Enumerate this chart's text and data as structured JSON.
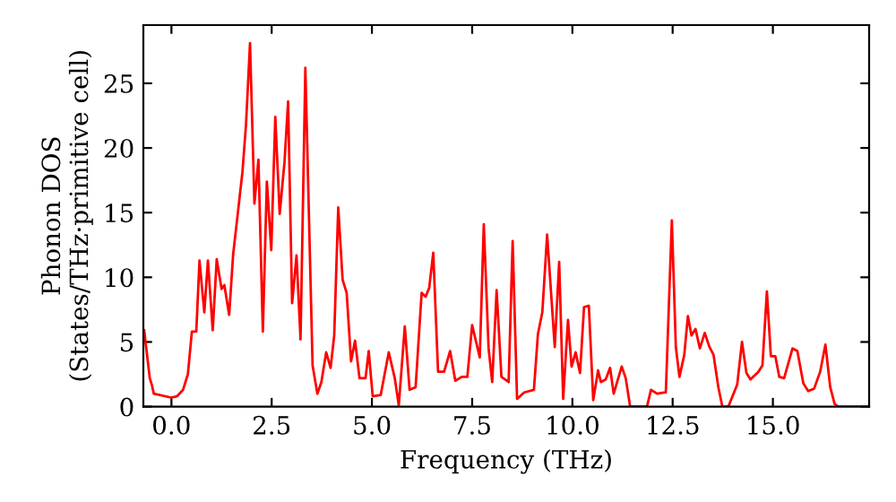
{
  "chart_data": {
    "type": "line",
    "xlabel": "Frequency (THz)",
    "ylabel": "Phonon DOS\n(States/THz·primitive cell)",
    "xlim": [
      -0.7,
      17.4
    ],
    "ylim": [
      0,
      29.5
    ],
    "xticks": [
      {
        "value": 0,
        "label": "0.0"
      },
      {
        "value": 2.5,
        "label": "2.5"
      },
      {
        "value": 5,
        "label": "5.0"
      },
      {
        "value": 7.5,
        "label": "7.5"
      },
      {
        "value": 10,
        "label": "10.0"
      },
      {
        "value": 12.5,
        "label": "12.5"
      },
      {
        "value": 15,
        "label": "15.0"
      }
    ],
    "yticks": [
      0,
      5,
      10,
      15,
      20,
      25
    ],
    "grid": false,
    "marker": "none",
    "line_style": "solid",
    "series": [
      {
        "color": "#ff0000",
        "x": [
          -0.68,
          -0.54,
          -0.49,
          -0.44,
          -0.01,
          0.14,
          0.29,
          0.41,
          0.51,
          0.62,
          0.7,
          0.82,
          0.91,
          1.03,
          1.13,
          1.25,
          1.32,
          1.44,
          1.54,
          1.65,
          1.77,
          1.86,
          1.96,
          2.07,
          2.17,
          2.28,
          2.38,
          2.49,
          2.59,
          2.7,
          2.82,
          2.91,
          3.01,
          3.12,
          3.22,
          3.34,
          3.42,
          3.52,
          3.64,
          3.74,
          3.86,
          3.97,
          4.06,
          4.16,
          4.27,
          4.37,
          4.48,
          4.58,
          4.69,
          4.84,
          4.92,
          5.02,
          5.22,
          5.42,
          5.57,
          5.67,
          5.82,
          5.94,
          6.09,
          6.24,
          6.34,
          6.43,
          6.53,
          6.65,
          6.8,
          6.95,
          7.08,
          7.24,
          7.38,
          7.5,
          7.69,
          7.79,
          7.91,
          8.0,
          8.11,
          8.23,
          8.41,
          8.51,
          8.62,
          8.8,
          9.04,
          9.14,
          9.25,
          9.37,
          9.56,
          9.67,
          9.77,
          9.89,
          9.98,
          10.08,
          10.19,
          10.29,
          10.41,
          10.52,
          10.64,
          10.71,
          10.83,
          10.94,
          11.03,
          11.23,
          11.33,
          11.44,
          11.86,
          11.96,
          12.11,
          12.33,
          12.48,
          12.58,
          12.67,
          12.79,
          12.88,
          12.97,
          13.07,
          13.18,
          13.3,
          13.42,
          13.52,
          13.64,
          13.74,
          13.89,
          14.11,
          14.23,
          14.34,
          14.44,
          14.64,
          14.74,
          14.85,
          14.95,
          15.06,
          15.16,
          15.28,
          15.49,
          15.61,
          15.76,
          15.88,
          16.03,
          16.18,
          16.31,
          16.43,
          16.54,
          16.63,
          17.4
        ],
        "values": [
          5.9,
          2.2,
          1.7,
          1.0,
          0.7,
          0.8,
          1.3,
          2.5,
          5.8,
          5.8,
          11.3,
          7.3,
          11.3,
          5.9,
          11.4,
          9.1,
          9.4,
          7.1,
          11.8,
          14.8,
          18.1,
          21.8,
          28.1,
          15.7,
          19.1,
          5.8,
          17.4,
          12.1,
          22.4,
          14.9,
          18.9,
          23.6,
          8.0,
          11.7,
          5.2,
          26.2,
          16.0,
          3.2,
          1.0,
          1.9,
          4.2,
          3.0,
          5.5,
          15.4,
          9.8,
          8.8,
          3.5,
          5.1,
          2.2,
          2.2,
          4.3,
          0.8,
          0.9,
          4.2,
          2.2,
          0.1,
          6.2,
          1.3,
          1.5,
          8.8,
          8.5,
          9.2,
          11.9,
          2.7,
          2.7,
          4.3,
          2.0,
          2.3,
          2.3,
          6.3,
          3.8,
          14.1,
          4.5,
          1.9,
          9.0,
          2.3,
          1.9,
          12.8,
          0.6,
          1.1,
          1.3,
          5.6,
          7.3,
          13.3,
          4.6,
          11.2,
          0.6,
          6.7,
          3.1,
          4.2,
          2.6,
          7.7,
          7.8,
          0.5,
          2.8,
          1.9,
          2.1,
          3.0,
          1.0,
          3.1,
          2.2,
          0,
          0,
          1.3,
          1.0,
          1.1,
          14.4,
          4.6,
          2.3,
          4.0,
          7.0,
          5.5,
          6.0,
          4.5,
          5.7,
          4.6,
          4.0,
          1.5,
          0,
          0,
          1.7,
          5.0,
          2.6,
          2.1,
          2.7,
          3.2,
          8.9,
          3.9,
          3.9,
          2.3,
          2.2,
          4.5,
          4.3,
          1.8,
          1.2,
          1.4,
          2.7,
          4.8,
          1.5,
          0.2,
          0,
          0
        ]
      }
    ]
  }
}
